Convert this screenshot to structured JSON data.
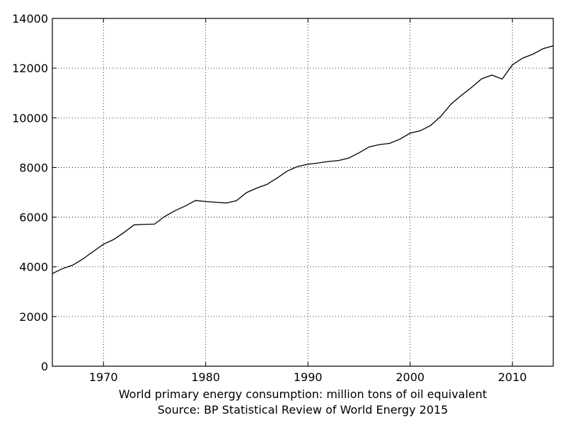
{
  "chart_data": {
    "type": "line",
    "title": "",
    "xlabel": "World primary energy consumption: million tons of oil equivalent",
    "xlabel_line2": "Source: BP Statistical Review of World Energy 2015",
    "ylabel": "",
    "xlim": [
      1965,
      2014
    ],
    "ylim": [
      0,
      14000
    ],
    "grid": true,
    "x_ticks": [
      1970,
      1980,
      1990,
      2000,
      2010
    ],
    "y_ticks": [
      0,
      2000,
      4000,
      6000,
      8000,
      10000,
      12000,
      14000
    ],
    "series": [
      {
        "name": "World primary energy consumption",
        "color": "#000000",
        "x": [
          1965,
          1966,
          1967,
          1968,
          1969,
          1970,
          1971,
          1972,
          1973,
          1974,
          1975,
          1976,
          1977,
          1978,
          1979,
          1980,
          1981,
          1982,
          1983,
          1984,
          1985,
          1986,
          1987,
          1988,
          1989,
          1990,
          1991,
          1992,
          1993,
          1994,
          1995,
          1996,
          1997,
          1998,
          1999,
          2000,
          2001,
          2002,
          2003,
          2004,
          2005,
          2006,
          2007,
          2008,
          2009,
          2010,
          2011,
          2012,
          2013,
          2014
        ],
        "values": [
          3730,
          3930,
          4070,
          4320,
          4620,
          4910,
          5100,
          5380,
          5690,
          5710,
          5720,
          6030,
          6260,
          6450,
          6670,
          6630,
          6600,
          6570,
          6660,
          6990,
          7170,
          7320,
          7580,
          7860,
          8040,
          8130,
          8180,
          8240,
          8280,
          8380,
          8590,
          8830,
          8920,
          8970,
          9140,
          9380,
          9480,
          9690,
          10060,
          10550,
          10900,
          11220,
          11570,
          11720,
          11560,
          12130,
          12400,
          12560,
          12780,
          12900
        ]
      }
    ]
  }
}
